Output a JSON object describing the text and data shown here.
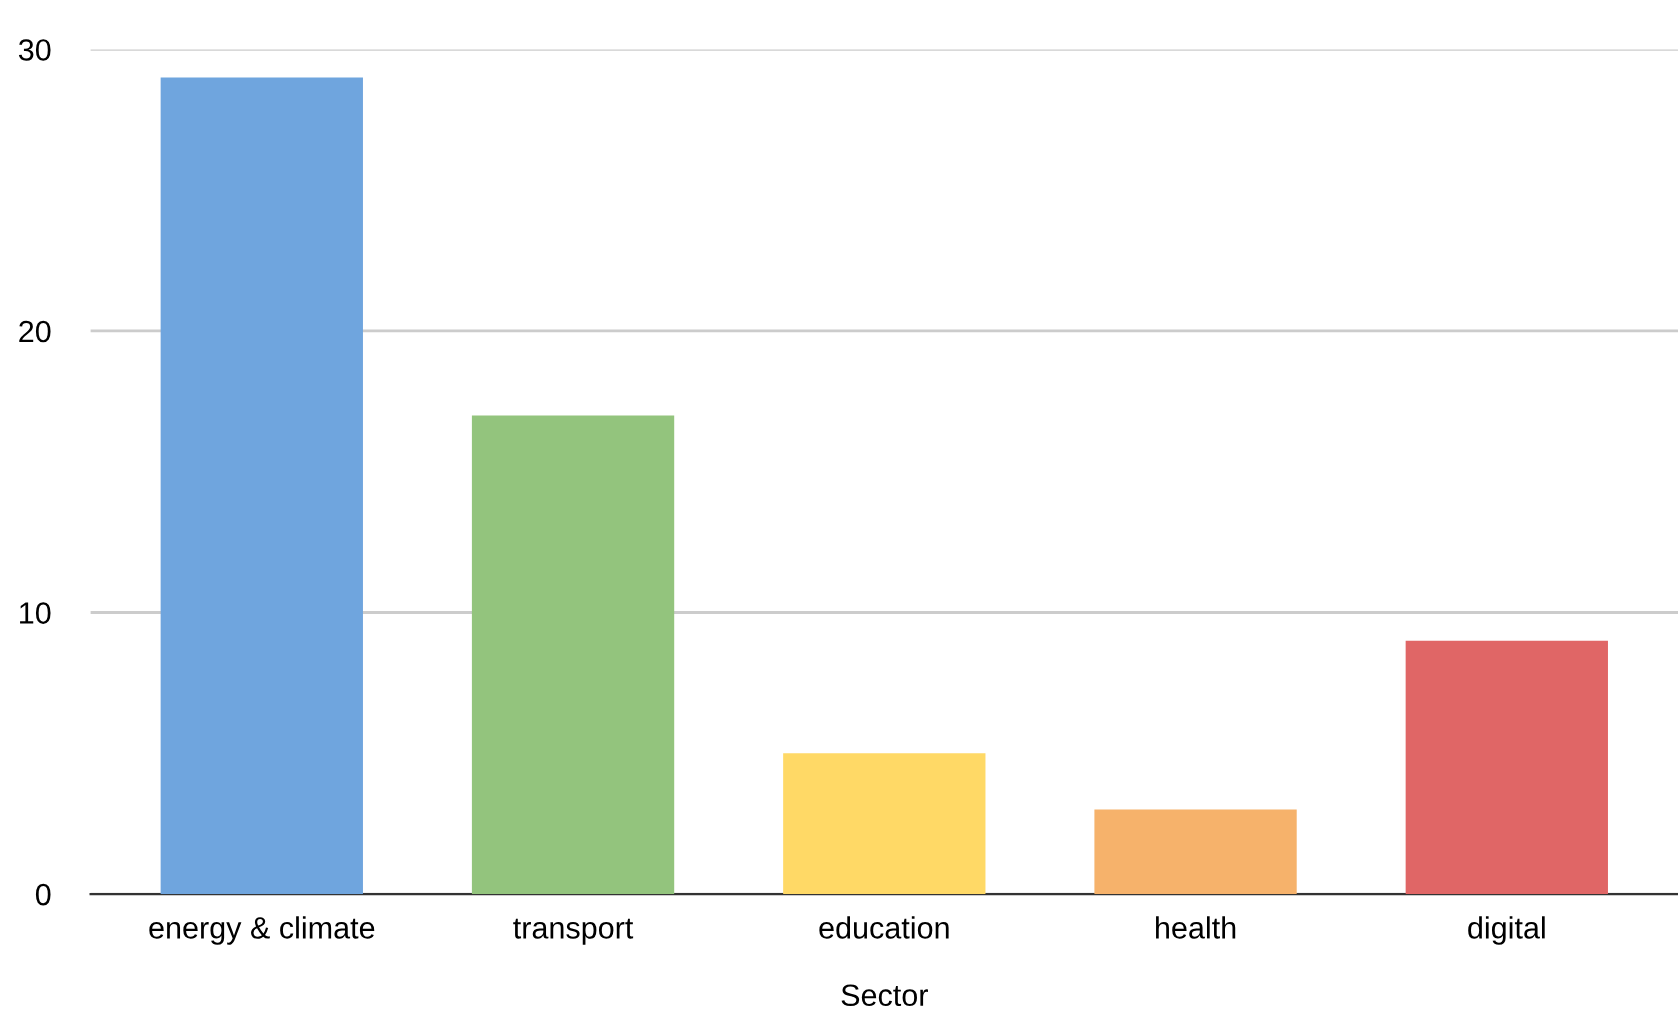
{
  "chart_data": {
    "type": "bar",
    "xlabel": "Sector",
    "categories": [
      "energy & climate",
      "transport",
      "education",
      "health",
      "digital"
    ],
    "values": [
      29,
      17,
      5,
      3,
      9
    ],
    "colors": [
      "#6fa5de",
      "#93c47d",
      "#ffd966",
      "#f6b26b",
      "#e06666"
    ],
    "ylim": [
      0,
      30
    ],
    "yticks": [
      0,
      10,
      20,
      30
    ],
    "grid": "y",
    "legend": false
  }
}
